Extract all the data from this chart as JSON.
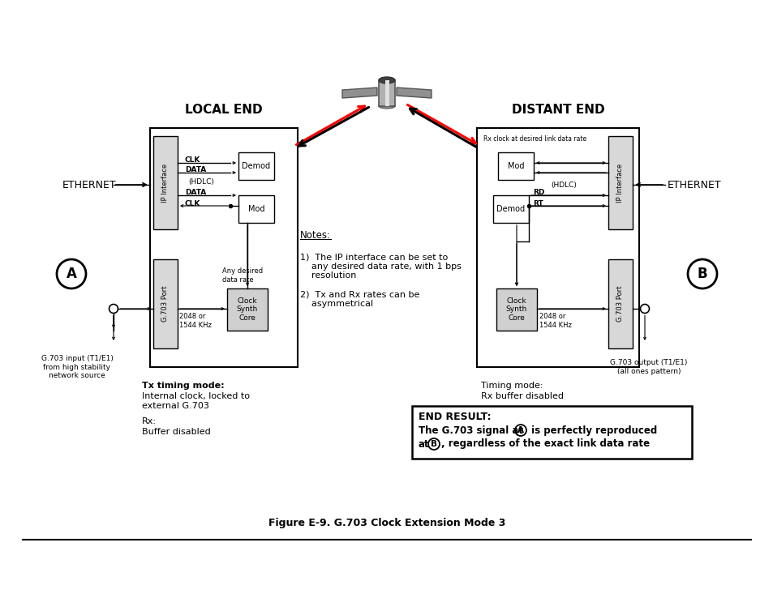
{
  "title": "Figure E-9. G.703 Clock Extension Mode 3",
  "bg_color": "#ffffff",
  "local_end_label": "LOCAL END",
  "distant_end_label": "DISTANT END",
  "ethernet_left": "ETHERNET",
  "ethernet_right": "ETHERNET",
  "ip_interface_label": "IP Interface",
  "g703_port_label": "G.703 Port",
  "demod_label": "Demod",
  "mod_label": "Mod",
  "clock_synth_label": "Clock\nSynth\nCore",
  "clk_label": "CLK",
  "data_label": "DATA",
  "hdlc_label": "(HDLC)",
  "any_desired": "Any desired\ndata rate",
  "freq_label": "2048 or\n1544 KHz",
  "rx_clock_label": "Rx clock at desired link data rate",
  "rd_label": "RD",
  "rt_label": "RT",
  "note1": "1)  The IP interface can be set to\n    any desired data rate, with 1 bps\n    resolution",
  "note2": "2)  Tx and Rx rates can be\n    asymmetrical",
  "g703_input_label": "G.703 input (T1/E1)\nfrom high stability\nnetwork source",
  "g703_output_label": "G.703 output (T1/E1)\n(all ones pattern)",
  "end_result_title": "END RESULT:",
  "label_a": "A",
  "label_b": "B"
}
